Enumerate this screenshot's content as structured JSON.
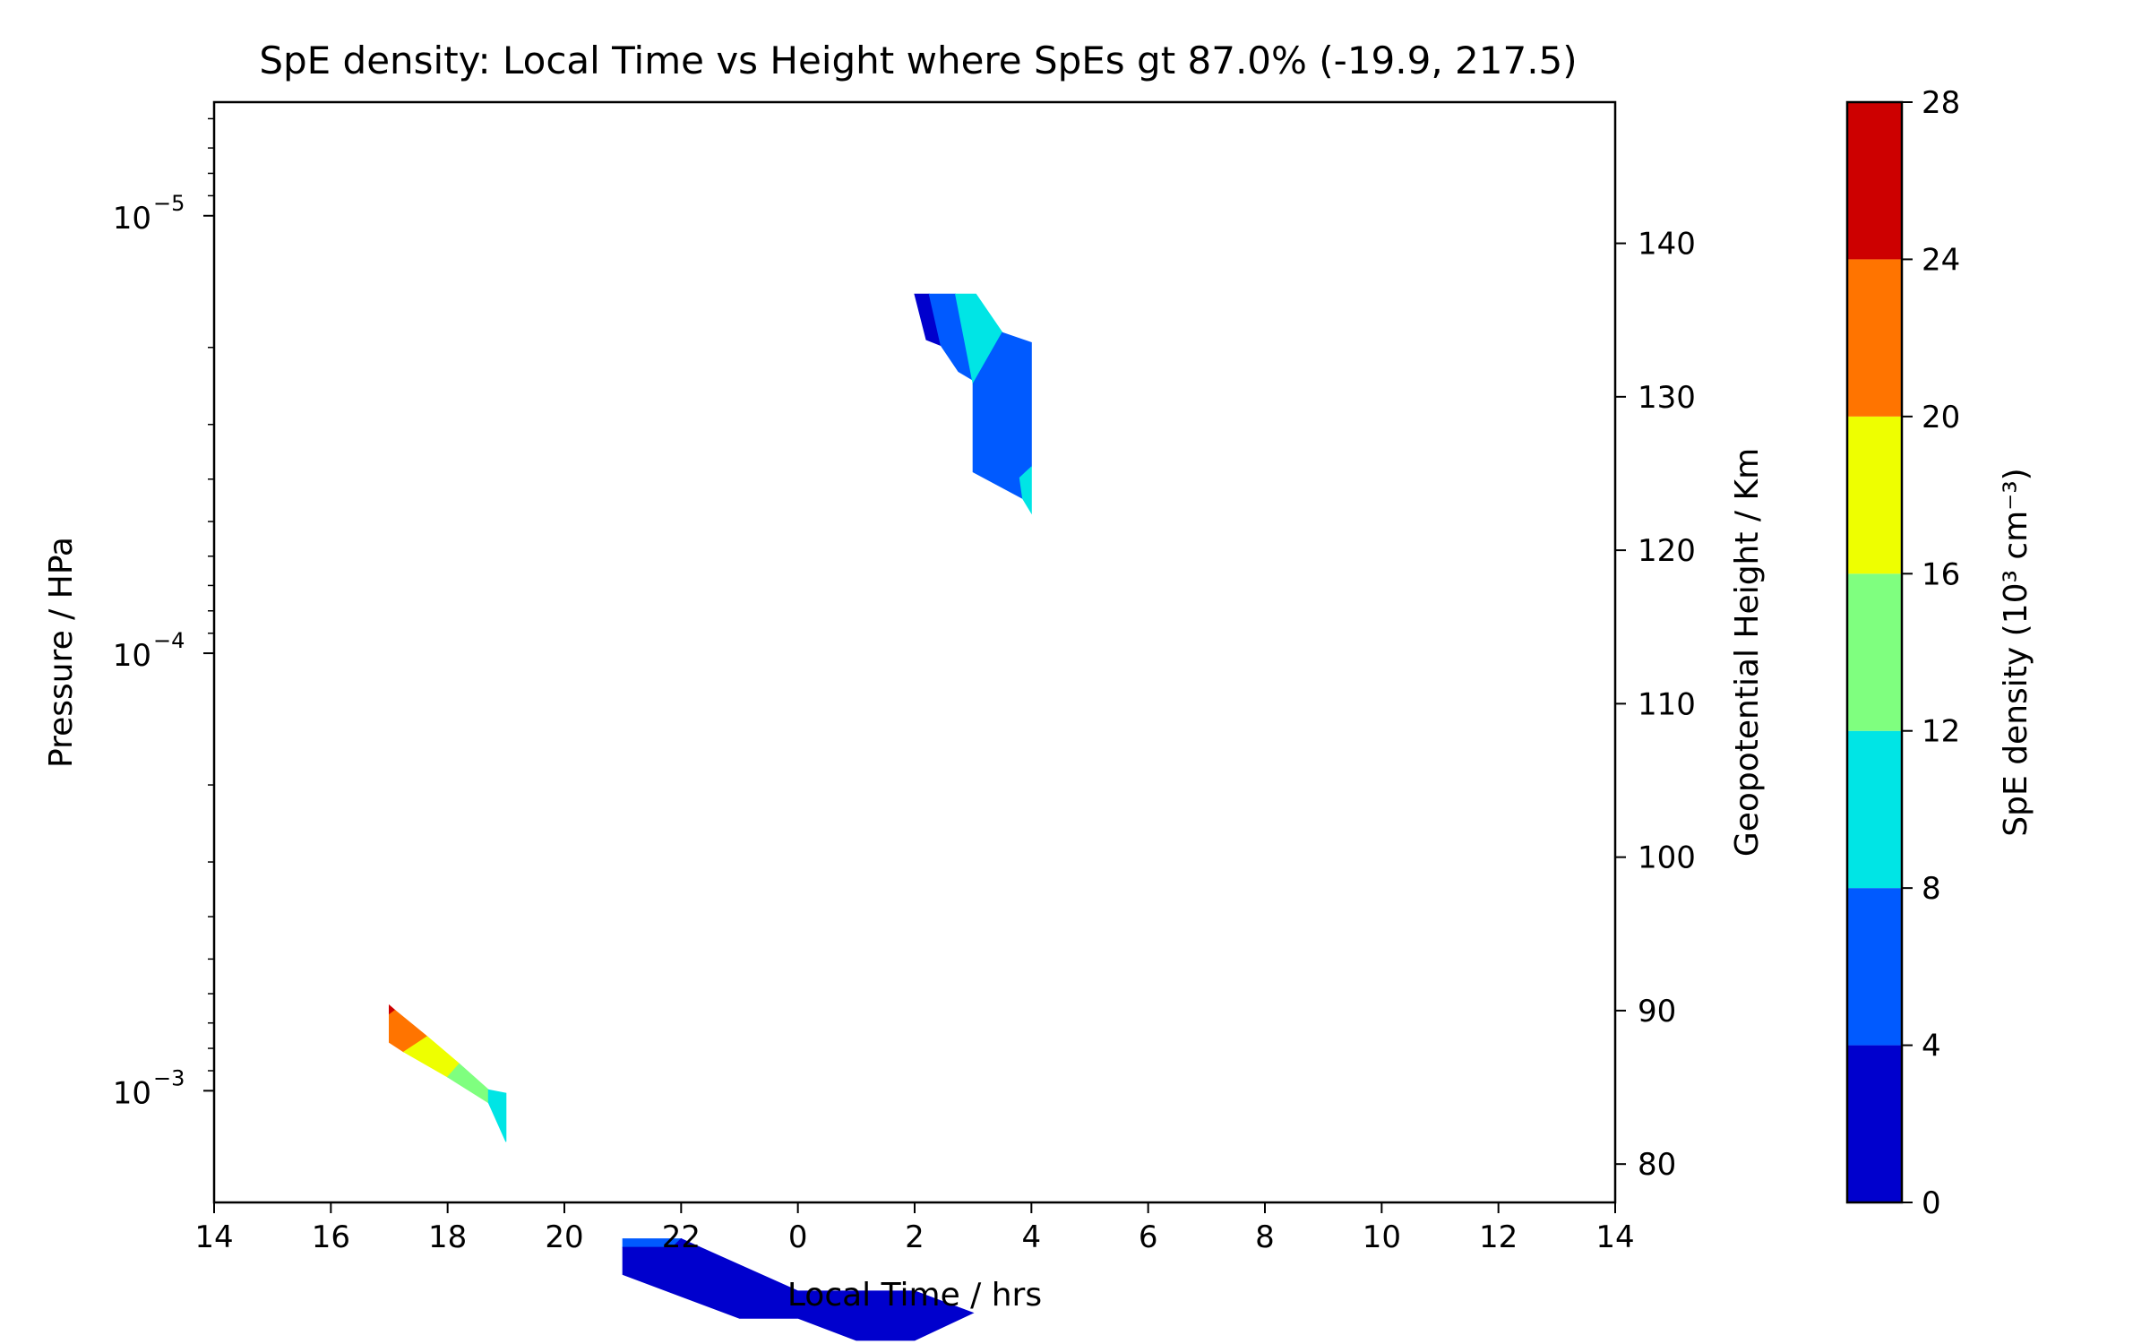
{
  "chart_data": {
    "type": "contour",
    "title": "SpE density: Local Time vs Height where SpEs gt 87.0%  (-19.9, 217.5)",
    "xlabel": "Local Time / hrs",
    "ylabel": "Pressure / HPa",
    "y2label": "Geopotential Height / Km",
    "colorbar_label": "SpE density (10³ cm⁻³)",
    "x_ticks": [
      {
        "pos": 0,
        "label": "14"
      },
      {
        "pos": 2,
        "label": "16"
      },
      {
        "pos": 4,
        "label": "18"
      },
      {
        "pos": 6,
        "label": "20"
      },
      {
        "pos": 8,
        "label": "22"
      },
      {
        "pos": 10,
        "label": "0"
      },
      {
        "pos": 12,
        "label": "2"
      },
      {
        "pos": 14,
        "label": "4"
      },
      {
        "pos": 16,
        "label": "6"
      },
      {
        "pos": 18,
        "label": "8"
      },
      {
        "pos": 20,
        "label": "10"
      },
      {
        "pos": 22,
        "label": "12"
      },
      {
        "pos": 24,
        "label": "14"
      }
    ],
    "xlim": [
      0,
      24
    ],
    "y_scale": "log",
    "ylim": [
      0.0018,
      5.5e-06
    ],
    "y_ticks": [
      {
        "value": 1e-05,
        "base": "10",
        "exp": "−5"
      },
      {
        "value": 0.0001,
        "base": "10",
        "exp": "−4"
      },
      {
        "value": 0.001,
        "base": "10",
        "exp": "−3"
      }
    ],
    "y2_ticks": [
      {
        "value": 140,
        "label": "140"
      },
      {
        "value": 130,
        "label": "130"
      },
      {
        "value": 120,
        "label": "120"
      },
      {
        "value": 110,
        "label": "110"
      },
      {
        "value": 100,
        "label": "100"
      },
      {
        "value": 90,
        "label": "90"
      },
      {
        "value": 80,
        "label": "80"
      }
    ],
    "y2lim": [
      77.5,
      149.2
    ],
    "colorbar": {
      "levels": [
        0,
        4,
        8,
        12,
        16,
        20,
        24,
        28
      ],
      "labels": [
        "0",
        "4",
        "8",
        "12",
        "16",
        "20",
        "24",
        "28"
      ],
      "colors": [
        "#0000cd",
        "#005aff",
        "#00e5e5",
        "#7fff7f",
        "#eeff00",
        "#ff7400",
        "#cd0000"
      ]
    },
    "regions": [
      {
        "color": "#0000cd",
        "points": [
          [
            12,
            1.51e-05
          ],
          [
            12.25,
            1.51e-05
          ],
          [
            12.45,
            1.98e-05
          ],
          [
            12.2,
            1.92e-05
          ]
        ]
      },
      {
        "color": "#005aff",
        "points": [
          [
            12.25,
            1.51e-05
          ],
          [
            12.7,
            1.51e-05
          ],
          [
            13.0,
            2.18e-05
          ],
          [
            13.1,
            2.42e-05
          ],
          [
            12.75,
            2.27e-05
          ],
          [
            12.45,
            1.98e-05
          ]
        ]
      },
      {
        "color": "#00e5e5",
        "points": [
          [
            12.7,
            1.51e-05
          ],
          [
            13.05,
            1.51e-05
          ],
          [
            13.5,
            1.85e-05
          ],
          [
            13.0,
            2.42e-05
          ]
        ]
      },
      {
        "color": "#005aff",
        "points": [
          [
            13.0,
            2.42e-05
          ],
          [
            13.5,
            1.85e-05
          ],
          [
            14.0,
            1.95e-05
          ],
          [
            14.0,
            3.75e-05
          ],
          [
            13.8,
            3.97e-05
          ],
          [
            13.85,
            4.43e-05
          ],
          [
            13.0,
            3.85e-05
          ]
        ]
      },
      {
        "color": "#00e5e5",
        "points": [
          [
            13.8,
            3.97e-05
          ],
          [
            14.0,
            3.75e-05
          ],
          [
            14.0,
            4.78e-05
          ],
          [
            13.85,
            4.43e-05
          ]
        ]
      },
      {
        "color": "#cd0000",
        "points": [
          [
            3.0,
            0.000638
          ],
          [
            3.1,
            0.000655
          ],
          [
            3.0,
            0.00067
          ]
        ]
      },
      {
        "color": "#ff7400",
        "points": [
          [
            3.0,
            0.00067
          ],
          [
            3.1,
            0.000655
          ],
          [
            3.65,
            0.000752
          ],
          [
            3.25,
            0.000815
          ],
          [
            3.0,
            0.000775
          ]
        ]
      },
      {
        "color": "#eeff00",
        "points": [
          [
            3.25,
            0.000815
          ],
          [
            3.65,
            0.000752
          ],
          [
            4.2,
            0.000868
          ],
          [
            4.0,
            0.00093
          ]
        ]
      },
      {
        "color": "#7fff7f",
        "points": [
          [
            4.0,
            0.00093
          ],
          [
            4.2,
            0.000868
          ],
          [
            4.7,
            0.000995
          ],
          [
            4.7,
            0.001065
          ]
        ]
      },
      {
        "color": "#00e5e5",
        "points": [
          [
            4.7,
            0.001065
          ],
          [
            4.7,
            0.000995
          ],
          [
            5.0,
            0.001013
          ],
          [
            5.0,
            0.001308
          ]
        ]
      },
      {
        "color": "#005aff",
        "points": [
          [
            7.0,
            0.00218
          ],
          [
            8.0,
            0.00218
          ],
          [
            7.85,
            0.00228
          ],
          [
            7.0,
            0.00228
          ]
        ]
      },
      {
        "color": "#0000cd",
        "points": [
          [
            7.0,
            0.00228
          ],
          [
            7.85,
            0.00228
          ],
          [
            8.0,
            0.00218
          ],
          [
            10.0,
            0.00287
          ],
          [
            12.0,
            0.00287
          ],
          [
            13.0,
            0.00322
          ],
          [
            12.0,
            0.00372
          ],
          [
            11.0,
            0.00372
          ],
          [
            10.0,
            0.00331
          ],
          [
            9.0,
            0.00331
          ],
          [
            7.0,
            0.00263
          ]
        ]
      }
    ]
  }
}
